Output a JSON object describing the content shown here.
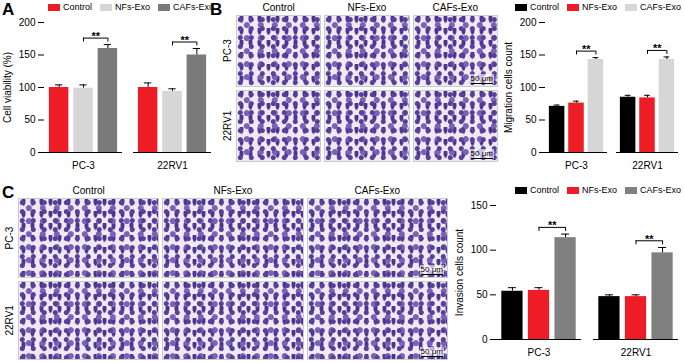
{
  "chart_data": [
    {
      "panel": "A",
      "type": "bar",
      "y_label": "Cell viability (%)",
      "categories": [
        "PC-3",
        "22RV1"
      ],
      "series": [
        {
          "name": "Control",
          "color": "#ee1c25",
          "values": [
            100,
            100
          ],
          "errors": [
            4,
            7
          ]
        },
        {
          "name": "NFs-Exo",
          "color": "#d6d6d6",
          "values": [
            99,
            94
          ],
          "errors": [
            5,
            4
          ]
        },
        {
          "name": "CAFs-Exo",
          "color": "#7a7a7a",
          "values": [
            160,
            150
          ],
          "errors": [
            6,
            10
          ]
        }
      ],
      "ylim": [
        0,
        200
      ],
      "yticks": [
        0,
        50,
        100,
        150,
        200
      ],
      "annotations": [
        {
          "category": "PC-3",
          "between": [
            "NFs-Exo",
            "CAFs-Exo"
          ],
          "text": "**"
        },
        {
          "category": "22RV1",
          "between": [
            "NFs-Exo",
            "CAFs-Exo"
          ],
          "text": "**"
        }
      ]
    },
    {
      "panel": "B",
      "type": "bar",
      "y_label": "Migration cells count",
      "categories": [
        "PC-3",
        "22RV1"
      ],
      "series": [
        {
          "name": "Control",
          "color": "#000000",
          "values": [
            71,
            85
          ],
          "errors": [
            2,
            3
          ]
        },
        {
          "name": "NFs-Exo",
          "color": "#ee1c25",
          "values": [
            76,
            84
          ],
          "errors": [
            3,
            4
          ]
        },
        {
          "name": "CAFs-Exo",
          "color": "#d6d6d6",
          "values": [
            143,
            143
          ],
          "errors": [
            3,
            4
          ]
        }
      ],
      "ylim": [
        0,
        200
      ],
      "yticks": [
        0,
        50,
        100,
        150,
        200
      ],
      "annotations": [
        {
          "category": "PC-3",
          "between": [
            "NFs-Exo",
            "CAFs-Exo"
          ],
          "text": "**"
        },
        {
          "category": "22RV1",
          "between": [
            "NFs-Exo",
            "CAFs-Exo"
          ],
          "text": "**"
        }
      ]
    },
    {
      "panel": "C",
      "type": "bar",
      "y_label": "Invasion cells count",
      "categories": [
        "PC-3",
        "22RV1"
      ],
      "series": [
        {
          "name": "Control",
          "color": "#000000",
          "values": [
            54,
            48
          ],
          "errors": [
            4,
            2
          ]
        },
        {
          "name": "NFs-Exo",
          "color": "#ee1c25",
          "values": [
            55,
            48
          ],
          "errors": [
            3,
            2
          ]
        },
        {
          "name": "CAFs-Exo",
          "color": "#808080",
          "values": [
            114,
            97
          ],
          "errors": [
            4,
            6
          ]
        }
      ],
      "ylim": [
        0,
        150
      ],
      "yticks": [
        0,
        50,
        100,
        150
      ],
      "annotations": [
        {
          "category": "PC-3",
          "between": [
            "NFs-Exo",
            "CAFs-Exo"
          ],
          "text": "**"
        },
        {
          "category": "22RV1",
          "between": [
            "NFs-Exo",
            "CAFs-Exo"
          ],
          "text": "**"
        }
      ]
    }
  ],
  "image_panels": [
    {
      "panel": "B",
      "columns": [
        "Control",
        "NFs-Exo",
        "CAFs-Exo"
      ],
      "rows": [
        "PC-3",
        "22RV1"
      ],
      "scale_bar": "50 μm"
    },
    {
      "panel": "C",
      "columns": [
        "Control",
        "NFs-Exo",
        "CAFs-Exo"
      ],
      "rows": [
        "PC-3",
        "22RV1"
      ],
      "scale_bar": "50 μm"
    }
  ]
}
